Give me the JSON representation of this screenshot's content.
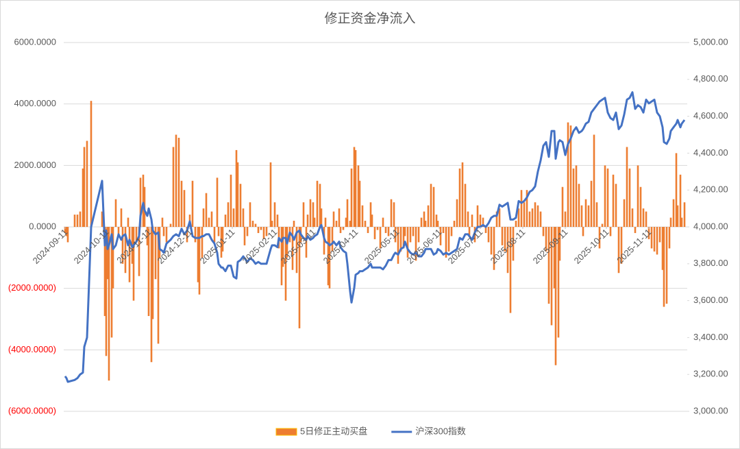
{
  "chart_data": {
    "type": "combo",
    "title": "修正资金净流入",
    "x": [
      "2024-09-11",
      "2024-09-12",
      "2024-09-13",
      "2024-09-18",
      "2024-09-20",
      "2024-09-22",
      "2024-09-24",
      "2024-09-25",
      "2024-09-27",
      "2024-09-30",
      "2024-10-08",
      "2024-10-10",
      "2024-10-11",
      "2024-10-12",
      "2024-10-13",
      "2024-10-15",
      "2024-10-16",
      "2024-10-18",
      "2024-10-20",
      "2024-10-22",
      "2024-10-23",
      "2024-10-25",
      "2024-10-27",
      "2024-10-28",
      "2024-10-30",
      "2024-10-31",
      "2024-11-02",
      "2024-11-04",
      "2024-11-05",
      "2024-11-07",
      "2024-11-08",
      "2024-11-10",
      "2024-11-11",
      "2024-11-13",
      "2024-11-14",
      "2024-11-16",
      "2024-11-18",
      "2024-11-19",
      "2024-11-21",
      "2024-11-22",
      "2024-11-24",
      "2024-11-27",
      "2024-11-29",
      "2024-12-01",
      "2024-12-03",
      "2024-12-05",
      "2024-12-07",
      "2024-12-09",
      "2024-12-11",
      "2024-12-13",
      "2024-12-15",
      "2024-12-17",
      "2024-12-18",
      "2024-12-20",
      "2024-12-21",
      "2024-12-23",
      "2024-12-25",
      "2024-12-27",
      "2024-12-29",
      "2024-12-31",
      "2025-01-01",
      "2025-01-03",
      "2025-01-04",
      "2025-01-06",
      "2025-01-08",
      "2025-01-10",
      "2025-01-12",
      "2025-01-14",
      "2025-01-15",
      "2025-01-17",
      "2025-01-19",
      "2025-01-20",
      "2025-01-22",
      "2025-01-24",
      "2025-01-26",
      "2025-01-28",
      "2025-01-30",
      "2025-02-01",
      "2025-02-03",
      "2025-02-05",
      "2025-02-08",
      "2025-02-09",
      "2025-02-11",
      "2025-02-13",
      "2025-02-14",
      "2025-02-16",
      "2025-02-17",
      "2025-02-19",
      "2025-02-20",
      "2025-02-22",
      "2025-02-24",
      "2025-02-25",
      "2025-02-27",
      "2025-03-01",
      "2025-03-02",
      "2025-03-04",
      "2025-03-06",
      "2025-03-07",
      "2025-03-09",
      "2025-03-11",
      "2025-03-12",
      "2025-03-14",
      "2025-03-16",
      "2025-03-17",
      "2025-03-19",
      "2025-03-20",
      "2025-03-22",
      "2025-03-23",
      "2025-03-25",
      "2025-03-26",
      "2025-03-28",
      "2025-03-30",
      "2025-03-31",
      "2025-04-02",
      "2025-04-04",
      "2025-04-05",
      "2025-04-07",
      "2025-04-08",
      "2025-04-10",
      "2025-04-11",
      "2025-04-13",
      "2025-04-14",
      "2025-04-16",
      "2025-04-18",
      "2025-04-20",
      "2025-04-22",
      "2025-04-23",
      "2025-04-25",
      "2025-04-27",
      "2025-04-29",
      "2025-05-01",
      "2025-05-03",
      "2025-05-05",
      "2025-05-07",
      "2025-05-09",
      "2025-05-10",
      "2025-05-12",
      "2025-05-14",
      "2025-05-16",
      "2025-05-17",
      "2025-05-19",
      "2025-05-21",
      "2025-05-23",
      "2025-05-25",
      "2025-05-27",
      "2025-05-29",
      "2025-05-31",
      "2025-06-01",
      "2025-06-03",
      "2025-06-05",
      "2025-06-07",
      "2025-06-09",
      "2025-06-10",
      "2025-06-12",
      "2025-06-14",
      "2025-06-16",
      "2025-06-18",
      "2025-06-20",
      "2025-06-22",
      "2025-06-24",
      "2025-06-26",
      "2025-06-28",
      "2025-06-30",
      "2025-07-02",
      "2025-07-03",
      "2025-07-05",
      "2025-07-07",
      "2025-07-09",
      "2025-07-11",
      "2025-07-13",
      "2025-07-15",
      "2025-07-17",
      "2025-07-19",
      "2025-07-21",
      "2025-07-23",
      "2025-07-25",
      "2025-07-27",
      "2025-07-29",
      "2025-07-31",
      "2025-08-02",
      "2025-08-04",
      "2025-08-06",
      "2025-08-08",
      "2025-08-10",
      "2025-08-12",
      "2025-08-14",
      "2025-08-16",
      "2025-08-18",
      "2025-08-20",
      "2025-08-22",
      "2025-08-24",
      "2025-08-26",
      "2025-08-28",
      "2025-08-30",
      "2025-09-01",
      "2025-09-03",
      "2025-09-04",
      "2025-09-06",
      "2025-09-07",
      "2025-09-09",
      "2025-09-11",
      "2025-09-13",
      "2025-09-15",
      "2025-09-17",
      "2025-09-19",
      "2025-09-21",
      "2025-09-23",
      "2025-09-24",
      "2025-09-26",
      "2025-09-28",
      "2025-09-30",
      "2025-10-02",
      "2025-10-04",
      "2025-10-06",
      "2025-10-08",
      "2025-10-10",
      "2025-10-12",
      "2025-10-14",
      "2025-10-16",
      "2025-10-18",
      "2025-10-20",
      "2025-10-22",
      "2025-10-24",
      "2025-10-26",
      "2025-10-28",
      "2025-10-30",
      "2025-11-01",
      "2025-11-03",
      "2025-11-05",
      "2025-11-07",
      "2025-11-09",
      "2025-11-11",
      "2025-11-13",
      "2025-11-15",
      "2025-11-17",
      "2025-11-19",
      "2025-11-21",
      "2025-11-22",
      "2025-11-24",
      "2025-11-26",
      "2025-11-27",
      "2025-11-29",
      "2025-12-01",
      "2025-12-02",
      "2025-12-04",
      "2025-12-05",
      "2025-12-07"
    ],
    "series": [
      {
        "name": "5日修正主动买盘",
        "type": "bar",
        "color": "#ED7D31",
        "values": [
          -200,
          -300,
          -500,
          400,
          400,
          500,
          1900,
          2600,
          2800,
          4100,
          500,
          -2900,
          -4200,
          -1700,
          -5000,
          -3600,
          -2000,
          900,
          -300,
          600,
          -1200,
          -1500,
          300,
          -1800,
          -1200,
          -2400,
          -500,
          -1600,
          1600,
          1700,
          1300,
          -600,
          -2900,
          -4400,
          -3000,
          -1700,
          -3800,
          -1000,
          300,
          -300,
          -500,
          100,
          2600,
          3000,
          2900,
          1500,
          1200,
          -500,
          400,
          1500,
          -500,
          -1800,
          -2200,
          -1000,
          600,
          1100,
          300,
          500,
          -500,
          1600,
          -300,
          -1000,
          -800,
          400,
          800,
          1700,
          600,
          2500,
          2100,
          1400,
          600,
          -600,
          -300,
          800,
          200,
          100,
          -200,
          -100,
          -400,
          -300,
          2100,
          200,
          800,
          400,
          -700,
          -1900,
          -1300,
          -2400,
          -1000,
          -500,
          -1400,
          200,
          -1500,
          -3300,
          -500,
          800,
          -1000,
          400,
          900,
          800,
          300,
          1500,
          1400,
          600,
          -900,
          300,
          -1900,
          -2000,
          -800,
          500,
          200,
          600,
          -200,
          -100,
          300,
          900,
          200,
          1900,
          2600,
          2500,
          2000,
          1500,
          700,
          200,
          -200,
          800,
          400,
          -400,
          -100,
          -700,
          300,
          -200,
          -300,
          900,
          800,
          -500,
          -1200,
          -800,
          -700,
          -300,
          -1000,
          -500,
          -300,
          -1100,
          -500,
          300,
          500,
          200,
          700,
          1400,
          1300,
          400,
          200,
          -600,
          -200,
          -1000,
          -800,
          -300,
          200,
          900,
          1900,
          2100,
          1400,
          500,
          -300,
          400,
          -500,
          700,
          400,
          300,
          -200,
          -500,
          -900,
          -1400,
          500,
          600,
          -600,
          -800,
          -1500,
          -2800,
          -1100,
          200,
          600,
          1200,
          800,
          1200,
          500,
          600,
          800,
          700,
          500,
          -300,
          -800,
          -2500,
          -3200,
          -2000,
          -4500,
          -3600,
          -1100,
          1300,
          500,
          3400,
          3300,
          1900,
          2000,
          1400,
          700,
          -300,
          900,
          700,
          1500,
          3000,
          800,
          -700,
          100,
          2000,
          1900,
          -300,
          1700,
          1400,
          -1500,
          -1200,
          900,
          2600,
          1900,
          600,
          -200,
          2000,
          1300,
          600,
          500,
          -400,
          -700,
          -800,
          -900,
          -500,
          -1400,
          -2600,
          -2500,
          -700,
          300,
          900,
          2400,
          700,
          1700,
          300,
          800
        ]
      },
      {
        "name": "沪深300指数",
        "type": "line",
        "axis": "y2",
        "color": "#4472C4",
        "values": [
          3190,
          3180,
          3160,
          3170,
          3180,
          3200,
          3210,
          3350,
          3400,
          4000,
          4250,
          3900,
          3980,
          3880,
          3900,
          3960,
          3880,
          3900,
          3960,
          3930,
          3950,
          3960,
          3900,
          3930,
          3890,
          3900,
          3920,
          3950,
          4060,
          4130,
          4090,
          4060,
          4100,
          4040,
          3980,
          3960,
          3970,
          3880,
          3870,
          3860,
          3910,
          3930,
          3950,
          3960,
          3950,
          3990,
          3960,
          3980,
          4030,
          3950,
          3940,
          3940,
          3940,
          3950,
          3950,
          3960,
          3960,
          3930,
          3910,
          3860,
          3800,
          3780,
          3780,
          3760,
          3790,
          3790,
          3730,
          3720,
          3810,
          3820,
          3840,
          3830,
          3810,
          3830,
          3820,
          3800,
          3810,
          3800,
          3800,
          3800,
          3880,
          3900,
          3900,
          3890,
          3940,
          3920,
          3940,
          3940,
          3910,
          3970,
          3950,
          3930,
          3970,
          3980,
          3960,
          3940,
          3930,
          3950,
          3930,
          3940,
          3950,
          3960,
          4000,
          4010,
          3940,
          3920,
          3910,
          3900,
          3910,
          3920,
          3900,
          3920,
          3890,
          3870,
          3860,
          3800,
          3650,
          3590,
          3670,
          3740,
          3750,
          3760,
          3760,
          3770,
          3780,
          3800,
          3780,
          3780,
          3780,
          3780,
          3770,
          3790,
          3820,
          3820,
          3850,
          3860,
          3850,
          3880,
          3890,
          3920,
          3880,
          3860,
          3850,
          3860,
          3840,
          3840,
          3860,
          3880,
          3880,
          3880,
          3850,
          3860,
          3880,
          3870,
          3850,
          3860,
          3850,
          3860,
          3870,
          3880,
          3940,
          3930,
          3960,
          3960,
          3950,
          3930,
          3970,
          4000,
          4000,
          4010,
          4000,
          4020,
          4050,
          4060,
          4060,
          4120,
          4110,
          4120,
          4130,
          4040,
          4040,
          4050,
          4140,
          4130,
          4140,
          4160,
          4190,
          4200,
          4220,
          4300,
          4360,
          4440,
          4460,
          4380,
          4520,
          4520,
          4370,
          4460,
          4470,
          4460,
          4390,
          4450,
          4480,
          4520,
          4540,
          4510,
          4520,
          4530,
          4560,
          4570,
          4620,
          4640,
          4660,
          4680,
          4690,
          4700,
          4620,
          4590,
          4580,
          4620,
          4530,
          4550,
          4610,
          4690,
          4700,
          4730,
          4640,
          4660,
          4650,
          4620,
          4690,
          4670,
          4680,
          4690,
          4620,
          4600,
          4540,
          4460,
          4450,
          4480,
          4520,
          4540,
          4560,
          4580,
          4540,
          4560,
          4580
        ]
      }
    ],
    "xlim": [
      "2024-09-10",
      "2025-12-09"
    ],
    "xticks": [
      "2024-09-11",
      "2024-10-11",
      "2024-11-11",
      "2024-12-11",
      "2025-01-11",
      "2025-02-11",
      "2025-03-11",
      "2025-04-11",
      "2025-05-11",
      "2025-06-11",
      "2025-07-11",
      "2025-08-11",
      "2025-09-11",
      "2025-10-11",
      "2025-11-11"
    ],
    "ylim": [
      -6000,
      6000
    ],
    "yticks": [
      {
        "value": -6000,
        "label": "(6000.0000)"
      },
      {
        "value": -4000,
        "label": "(4000.0000)"
      },
      {
        "value": -2000,
        "label": "(2000.0000)"
      },
      {
        "value": 0,
        "label": "0.0000"
      },
      {
        "value": 2000,
        "label": "2000.0000"
      },
      {
        "value": 4000,
        "label": "4000.0000"
      },
      {
        "value": 6000,
        "label": "6000.0000"
      }
    ],
    "negative_tick_color": "#FF0000",
    "y2lim": [
      3000,
      5000
    ],
    "y2ticks": [
      {
        "value": 3000,
        "label": "3,000.00"
      },
      {
        "value": 3200,
        "label": "3,200.00"
      },
      {
        "value": 3400,
        "label": "3,400.00"
      },
      {
        "value": 3600,
        "label": "3,600.00"
      },
      {
        "value": 3800,
        "label": "3,800.00"
      },
      {
        "value": 4000,
        "label": "4,000.00"
      },
      {
        "value": 4200,
        "label": "4,200.00"
      },
      {
        "value": 4400,
        "label": "4,400.00"
      },
      {
        "value": 4600,
        "label": "4,600.00"
      },
      {
        "value": 4800,
        "label": "4,800.00"
      },
      {
        "value": 5000,
        "label": "5,000.00"
      }
    ],
    "grid": true,
    "legend": "bottom"
  }
}
